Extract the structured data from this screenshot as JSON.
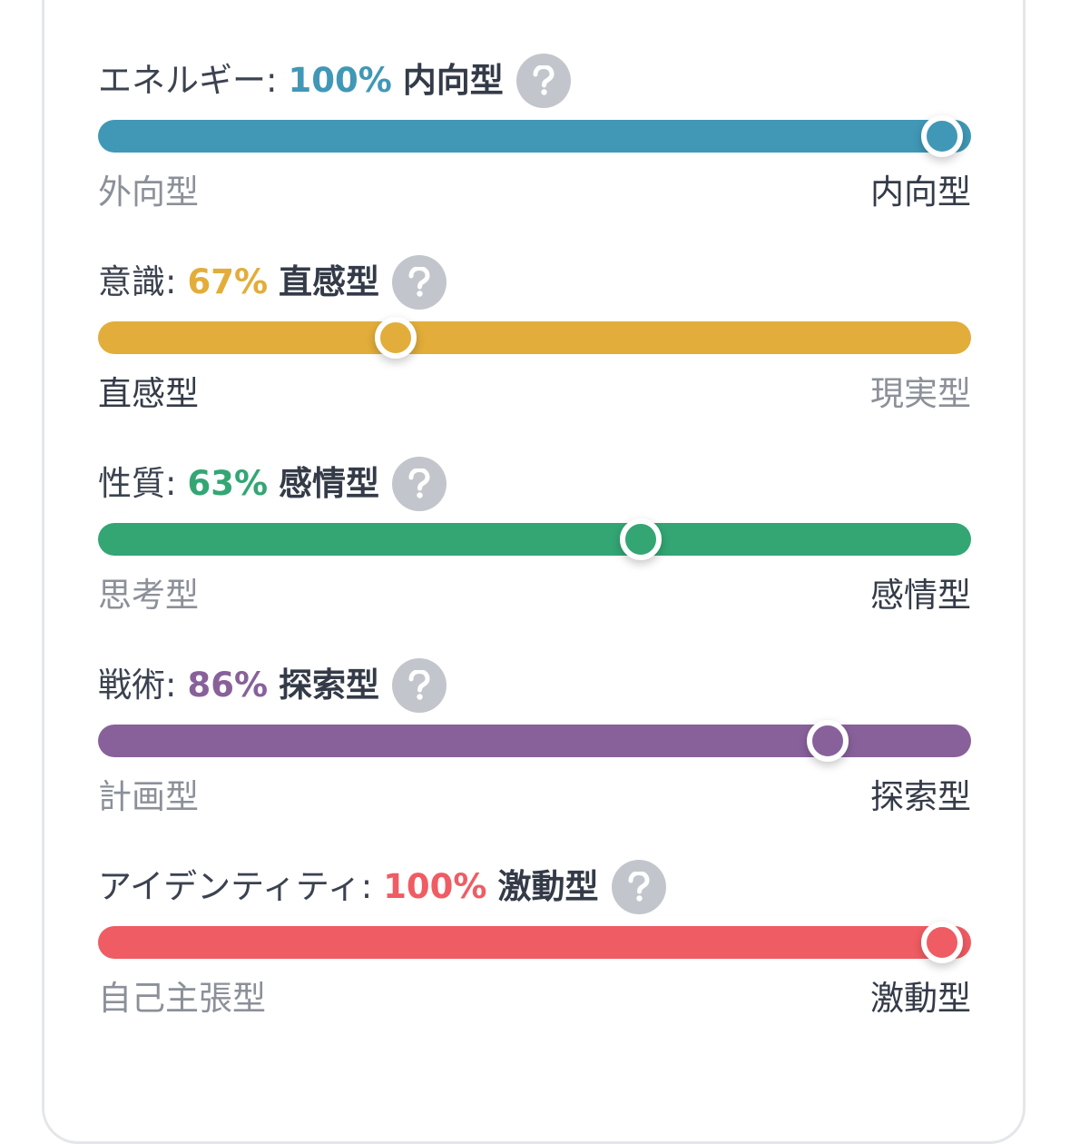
{
  "traits": [
    {
      "label": "エネルギー",
      "colon": ":",
      "percent": "100%",
      "type": "内向型",
      "color": "#4098b6",
      "value": 100,
      "direction": "right",
      "left_pole": "外向型",
      "right_pole": "内向型",
      "help_icon": "question-mark-icon"
    },
    {
      "label": "意識",
      "colon": ":",
      "percent": "67%",
      "type": "直感型",
      "color": "#e2ad3a",
      "value": 67,
      "direction": "left",
      "left_pole": "直感型",
      "right_pole": "現実型",
      "help_icon": "question-mark-icon"
    },
    {
      "label": "性質",
      "colon": ":",
      "percent": "63%",
      "type": "感情型",
      "color": "#33a674",
      "value": 63,
      "direction": "right",
      "left_pole": "思考型",
      "right_pole": "感情型",
      "help_icon": "question-mark-icon"
    },
    {
      "label": "戦術",
      "colon": ":",
      "percent": "86%",
      "type": "探索型",
      "color": "#88619a",
      "value": 86,
      "direction": "right",
      "left_pole": "計画型",
      "right_pole": "探索型",
      "help_icon": "question-mark-icon"
    },
    {
      "label": "アイデンティティ",
      "colon": ":",
      "percent": "100%",
      "type": "激動型",
      "color": "#f05c63",
      "value": 100,
      "direction": "right",
      "left_pole": "自己主張型",
      "right_pole": "激動型",
      "help_icon": "question-mark-icon"
    }
  ]
}
